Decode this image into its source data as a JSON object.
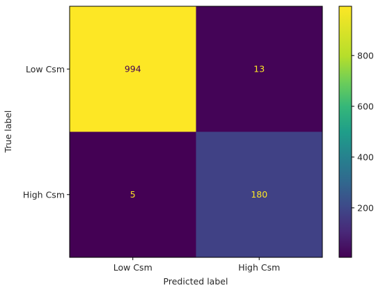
{
  "chart_data": {
    "type": "heatmap",
    "title": "",
    "xlabel": "Predicted label",
    "ylabel": "True label",
    "x_categories": [
      "Low Csm",
      "High Csm"
    ],
    "y_categories": [
      "Low Csm",
      "High Csm"
    ],
    "matrix": [
      [
        994,
        13
      ],
      [
        5,
        180
      ]
    ],
    "colormap": "viridis",
    "colorbar": {
      "ticks": [
        200,
        400,
        600,
        800
      ],
      "range": [
        5,
        994
      ]
    },
    "text_colors": {
      "on_dark": "#fde725",
      "on_light": "#440154"
    },
    "grid": false,
    "legend": "colorbar-right"
  }
}
